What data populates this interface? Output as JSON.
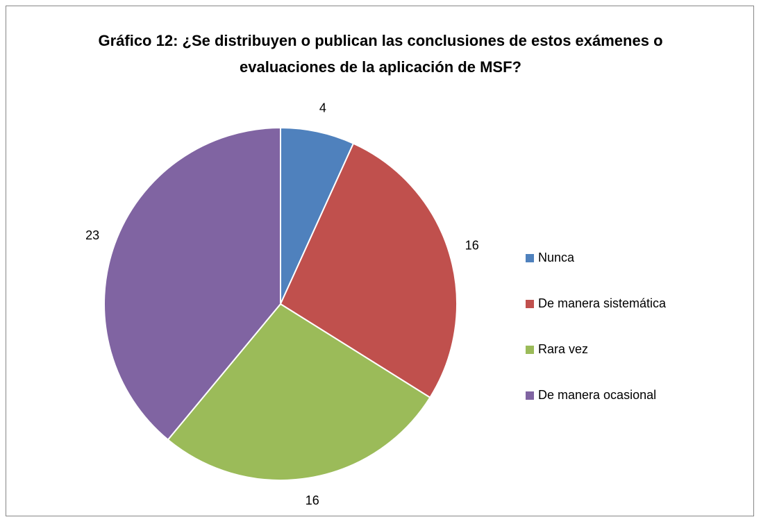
{
  "chart_data": {
    "type": "pie",
    "title": "Gráfico 12: ¿Se distribuyen o publican las conclusiones de estos exámenes o evaluaciones de la aplicación de MSF?",
    "categories": [
      "Nunca",
      "De manera sistemática",
      "Rara vez",
      "De manera ocasional"
    ],
    "values": [
      4,
      16,
      16,
      23
    ],
    "colors": [
      "#4f81bd",
      "#c0504d",
      "#9bbb59",
      "#8064a2"
    ],
    "legend": "right"
  }
}
